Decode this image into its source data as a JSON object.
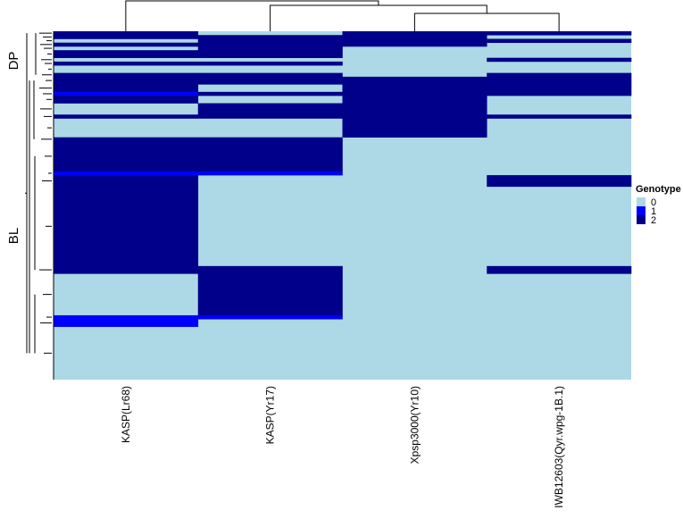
{
  "chart_data": {
    "type": "heatmap",
    "title": "",
    "xlabel": "",
    "ylabel": "",
    "columns": [
      "KASP(Lr68)",
      "KASP(Yr17)",
      "Xpsp3000(Yr10)",
      "IWB12603(Qyr.wpg-1B.1)"
    ],
    "row_groups": [
      "DP",
      "BL"
    ],
    "legend": {
      "title": "Genotype",
      "position": "right",
      "entries": [
        {
          "label": "0",
          "value": 0,
          "color": "#add8e6"
        },
        {
          "label": "1",
          "value": 1,
          "color": "#0000ff"
        },
        {
          "label": "2",
          "value": 2,
          "color": "#00008b"
        }
      ]
    },
    "n_rows_approx": 100,
    "row_blocks": [
      {
        "rows": 1,
        "values": [
          2,
          0,
          2,
          2
        ]
      },
      {
        "rows": 1,
        "values": [
          2,
          2,
          2,
          0
        ]
      },
      {
        "rows": 1,
        "values": [
          0,
          2,
          2,
          2
        ]
      },
      {
        "rows": 1,
        "values": [
          2,
          2,
          2,
          0
        ]
      },
      {
        "rows": 1,
        "values": [
          0,
          2,
          0,
          0
        ]
      },
      {
        "rows": 2,
        "values": [
          2,
          2,
          0,
          0
        ]
      },
      {
        "rows": 1,
        "values": [
          0,
          0,
          0,
          2
        ]
      },
      {
        "rows": 1,
        "values": [
          2,
          2,
          0,
          0
        ]
      },
      {
        "rows": 2,
        "values": [
          0,
          0,
          0,
          0
        ]
      },
      {
        "rows": 1,
        "values": [
          2,
          2,
          0,
          2
        ]
      },
      {
        "rows": 2,
        "values": [
          2,
          2,
          2,
          2
        ]
      },
      {
        "rows": 2,
        "values": [
          2,
          0,
          2,
          2
        ]
      },
      {
        "rows": 1,
        "values": [
          1,
          2,
          2,
          2
        ]
      },
      {
        "rows": 2,
        "values": [
          2,
          0,
          2,
          0
        ]
      },
      {
        "rows": 3,
        "values": [
          0,
          2,
          2,
          0
        ]
      },
      {
        "rows": 1,
        "values": [
          2,
          2,
          2,
          2
        ]
      },
      {
        "rows": 5,
        "values": [
          0,
          0,
          2,
          0
        ]
      },
      {
        "rows": 1,
        "values": [
          2,
          2,
          0,
          0
        ]
      },
      {
        "rows": 8,
        "values": [
          2,
          2,
          0,
          0
        ]
      },
      {
        "rows": 1,
        "values": [
          1,
          1,
          0,
          0
        ]
      },
      {
        "rows": 3,
        "values": [
          2,
          0,
          0,
          2
        ]
      },
      {
        "rows": 21,
        "values": [
          2,
          0,
          0,
          0
        ]
      },
      {
        "rows": 2,
        "values": [
          2,
          2,
          0,
          2
        ]
      },
      {
        "rows": 11,
        "values": [
          0,
          2,
          0,
          0
        ]
      },
      {
        "rows": 1,
        "values": [
          1,
          1,
          0,
          0
        ]
      },
      {
        "rows": 2,
        "values": [
          1,
          0,
          0,
          0
        ]
      },
      {
        "rows": 14,
        "values": [
          0,
          0,
          0,
          0
        ]
      }
    ]
  }
}
